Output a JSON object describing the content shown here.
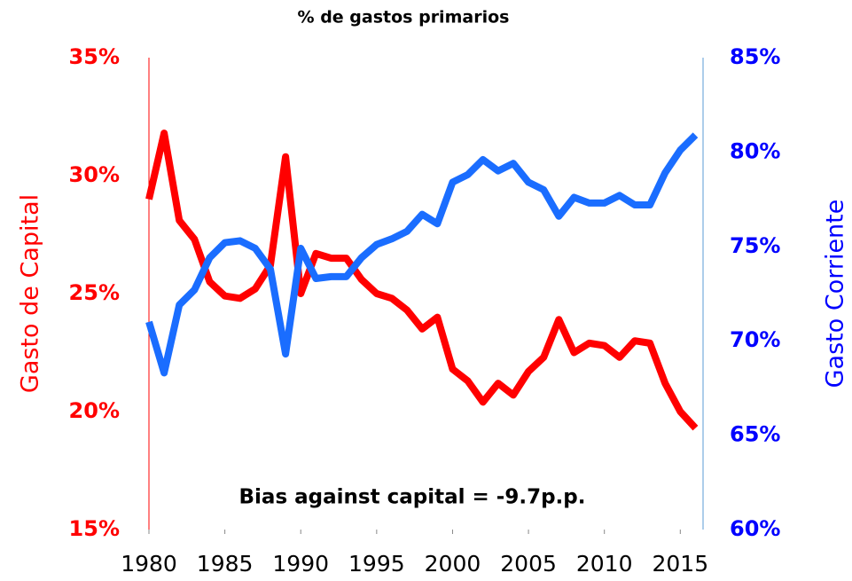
{
  "chart_data": {
    "type": "line",
    "title": "% de gastos primarios",
    "ylabel": "Gasto de Capital",
    "y2label": "Gasto Corriente",
    "annotation": "Bias against capital = -9.7p.p.",
    "x": [
      1980,
      1981,
      1982,
      1983,
      1984,
      1985,
      1986,
      1987,
      1988,
      1989,
      1990,
      1991,
      1992,
      1993,
      1994,
      1995,
      1996,
      1997,
      1998,
      1999,
      2000,
      2001,
      2002,
      2003,
      2004,
      2005,
      2006,
      2007,
      2008,
      2009,
      2010,
      2011,
      2012,
      2013,
      2014,
      2015,
      2016
    ],
    "series": [
      {
        "color": "#ff0000",
        "values": [
          29.0,
          31.8,
          28.1,
          27.3,
          25.5,
          24.9,
          24.8,
          25.2,
          26.2,
          30.8,
          25.0,
          26.7,
          26.5,
          26.5,
          25.6,
          25.0,
          24.8,
          24.3,
          23.5,
          24.0,
          21.8,
          21.3,
          20.4,
          21.2,
          20.7,
          21.7,
          22.3,
          23.9,
          22.5,
          22.9,
          22.8,
          22.3,
          23.0,
          22.9,
          21.2,
          20.0,
          19.3
        ]
      },
      {
        "color": "#1a6dff",
        "axis": "y2",
        "values": [
          71.0,
          68.3,
          71.9,
          72.7,
          74.4,
          75.2,
          75.3,
          74.9,
          73.8,
          69.3,
          74.9,
          73.3,
          73.4,
          73.4,
          74.4,
          75.1,
          75.4,
          75.8,
          76.7,
          76.2,
          78.4,
          78.8,
          79.6,
          79.0,
          79.4,
          78.4,
          78.0,
          76.6,
          77.6,
          77.3,
          77.3,
          77.7,
          77.2,
          77.2,
          78.9,
          80.1,
          80.9
        ]
      }
    ],
    "xlim": [
      1980,
      2016.5
    ],
    "xticks": [
      1980,
      1985,
      1990,
      1995,
      2000,
      2005,
      2010,
      2015
    ],
    "ylim": [
      15,
      35
    ],
    "yticks": [
      {
        "value": 15,
        "label": "15%"
      },
      {
        "value": 20,
        "label": "20%"
      },
      {
        "value": 25,
        "label": "25%"
      },
      {
        "value": 30,
        "label": "30%"
      },
      {
        "value": 35,
        "label": "35%"
      }
    ],
    "y2lim": [
      60,
      85
    ],
    "y2ticks": [
      {
        "value": 60,
        "label": "60%"
      },
      {
        "value": 65,
        "label": "65%"
      },
      {
        "value": 70,
        "label": "70%"
      },
      {
        "value": 75,
        "label": "75%"
      },
      {
        "value": 80,
        "label": "80%"
      },
      {
        "value": 85,
        "label": "85%"
      }
    ],
    "ylabel_color": "#ff0000",
    "y2label_color": "#0000ff"
  }
}
